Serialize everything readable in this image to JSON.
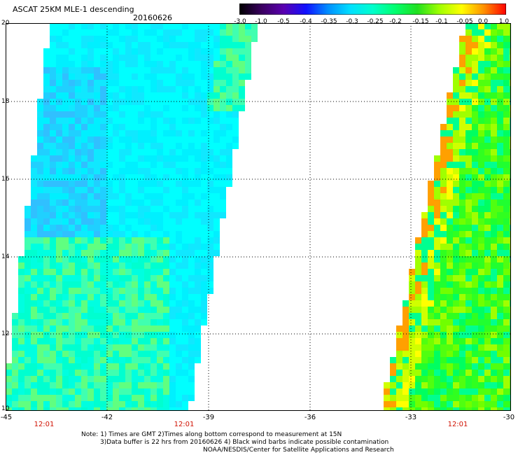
{
  "title": "ASCAT 25KM MLE-1 descending",
  "date": "20160626",
  "colorbar": {
    "labels": [
      "-3.0",
      "-1.0",
      "-0.5",
      "-0.4",
      "-0.35",
      "-0.3",
      "-0.25",
      "-0.2",
      "-0.15",
      "-0.1",
      "-0.05",
      "0.0",
      "1.0"
    ],
    "colors": [
      "#000000",
      "#3a0060",
      "#5a00b0",
      "#1010ff",
      "#0090ff",
      "#00e0ff",
      "#00ffcc",
      "#00ff70",
      "#20e020",
      "#a0ff00",
      "#ffff00",
      "#ff9000",
      "#ff0000"
    ]
  },
  "lat_labels": [
    "20",
    "18",
    "16",
    "14",
    "12",
    "10"
  ],
  "lon_labels": [
    "-45",
    "-42",
    "-39",
    "-36",
    "-33",
    "-30"
  ],
  "time_labels": [
    "12:01",
    "12:01",
    "12:01"
  ],
  "notes": [
    "Note: 1) Times are GMT 2)Times along bottom correspond to measurement at 15N",
    "3)Data buffer is 22 hrs from 20160626 4) Black wind barbs indicate possible contamination",
    "NOAA/NESDIS/Center for Satellite Applications and Research"
  ]
}
